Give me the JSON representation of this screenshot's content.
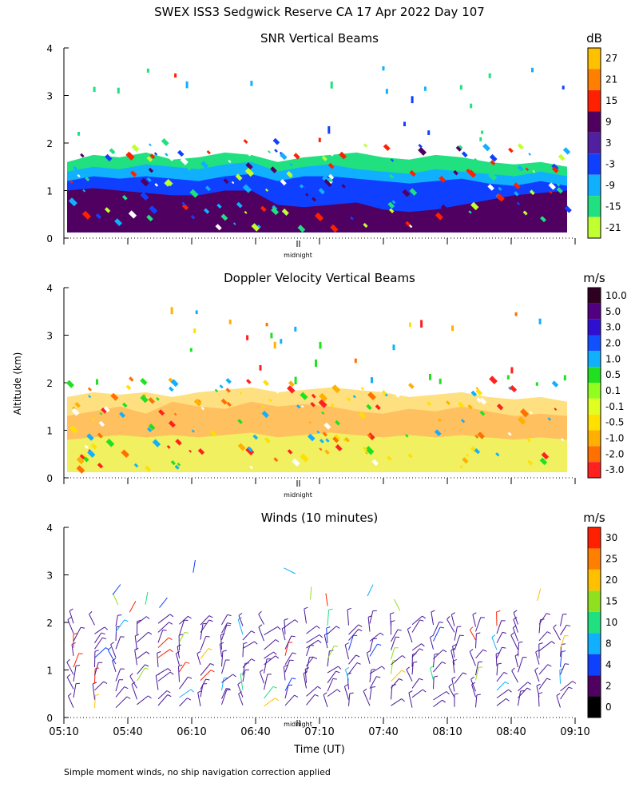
{
  "figure": {
    "title": "SWEX ISS3 Sedgwick Reserve CA  17 Apr 2022 Day 107",
    "ylabel": "Altitude (km)",
    "xlabel": "Time (UT)",
    "footnote": "Simple moment winds, no ship navigation correction applied",
    "midnight_label": "midnight"
  },
  "chart_data": [
    {
      "type": "heatmap",
      "title": "SNR Vertical Beams",
      "colorbar_unit": "dB",
      "colorbar_ticks": [
        "27",
        "21",
        "15",
        "9",
        "3",
        "-3",
        "-9",
        "-15",
        "-21"
      ],
      "colorbar_colors": [
        "#ffc000",
        "#ff8000",
        "#ff2000",
        "#500060",
        "#5020a0",
        "#1040ff",
        "#10b0ff",
        "#20e080",
        "#c0ff30"
      ],
      "yticks": [
        "0",
        "1",
        "2",
        "3",
        "4"
      ],
      "ylim": [
        0,
        4
      ],
      "layers": [
        {
          "top": [
            1.6,
            1.75,
            1.7,
            1.8,
            1.65,
            1.7,
            1.8,
            1.75,
            1.6,
            1.7,
            1.75,
            1.8,
            1.7,
            1.65,
            1.75,
            1.7,
            1.6,
            1.55,
            1.6,
            1.5
          ],
          "color": "#20e080"
        },
        {
          "top": [
            1.4,
            1.5,
            1.45,
            1.55,
            1.5,
            1.45,
            1.55,
            1.6,
            1.4,
            1.5,
            1.55,
            1.45,
            1.4,
            1.35,
            1.45,
            1.4,
            1.35,
            1.3,
            1.4,
            1.3
          ],
          "color": "#10b0ff"
        },
        {
          "top": [
            1.2,
            1.3,
            1.25,
            1.3,
            1.25,
            1.2,
            1.3,
            1.35,
            1.2,
            1.3,
            1.3,
            1.25,
            1.2,
            1.15,
            1.2,
            1.25,
            1.15,
            1.1,
            1.2,
            1.1
          ],
          "color": "#1040ff"
        },
        {
          "top": [
            1.0,
            1.05,
            1.0,
            0.95,
            0.9,
            0.9,
            1.0,
            1.0,
            0.7,
            0.65,
            0.7,
            0.75,
            0.6,
            0.55,
            0.6,
            0.7,
            0.8,
            0.9,
            0.95,
            1.0
          ],
          "color": "#500060"
        }
      ]
    },
    {
      "type": "heatmap",
      "title": "Doppler Velocity Vertical Beams",
      "colorbar_unit": "m/s",
      "colorbar_ticks": [
        "10.0",
        "5.0",
        "3.0",
        "2.0",
        "1.0",
        "0.5",
        "0.1",
        "-0.1",
        "-0.5",
        "-1.0",
        "-2.0",
        "-3.0"
      ],
      "colorbar_colors": [
        "#300020",
        "#500080",
        "#3010d0",
        "#1050ff",
        "#10b0ff",
        "#20e020",
        "#90ff20",
        "#e0ff20",
        "#ffe000",
        "#ffb000",
        "#ff7000",
        "#ff2020"
      ],
      "yticks": [
        "0",
        "1",
        "2",
        "3",
        "4"
      ],
      "ylim": [
        0,
        4
      ],
      "layers": [
        {
          "top": [
            1.7,
            1.8,
            1.75,
            1.8,
            1.7,
            1.8,
            1.85,
            1.9,
            1.8,
            1.85,
            1.9,
            1.85,
            1.8,
            1.7,
            1.75,
            1.8,
            1.7,
            1.65,
            1.7,
            1.6
          ],
          "color": "#ffe080"
        },
        {
          "top": [
            1.3,
            1.4,
            1.5,
            1.35,
            1.6,
            1.5,
            1.45,
            1.6,
            1.5,
            1.55,
            1.5,
            1.4,
            1.35,
            1.45,
            1.4,
            1.5,
            1.4,
            1.3,
            1.35,
            1.3
          ],
          "color": "#ffc060"
        },
        {
          "top": [
            0.8,
            0.85,
            0.9,
            0.85,
            0.9,
            0.85,
            0.9,
            0.95,
            0.85,
            0.9,
            0.95,
            0.9,
            0.85,
            0.9,
            0.85,
            0.9,
            0.85,
            0.8,
            0.85,
            0.8
          ],
          "color": "#f0f060"
        }
      ]
    },
    {
      "type": "scatter",
      "title": "Winds (10 minutes)",
      "colorbar_unit": "m/s",
      "colorbar_ticks": [
        "30",
        "25",
        "20",
        "15",
        "10",
        "8",
        "4",
        "2",
        "0"
      ],
      "colorbar_colors": [
        "#ff2000",
        "#ff8000",
        "#ffc000",
        "#90e020",
        "#20e080",
        "#10b0ff",
        "#1040ff",
        "#500060",
        "#000000"
      ],
      "x_ticks": [
        "05:10",
        "05:40",
        "06:10",
        "06:40",
        "07:10",
        "07:40",
        "08:10",
        "08:40",
        "09:10"
      ],
      "yticks": [
        "0",
        "1",
        "2",
        "3",
        "4"
      ],
      "ylim": [
        0,
        4
      ],
      "barb_color": "#4a1a9a"
    }
  ]
}
